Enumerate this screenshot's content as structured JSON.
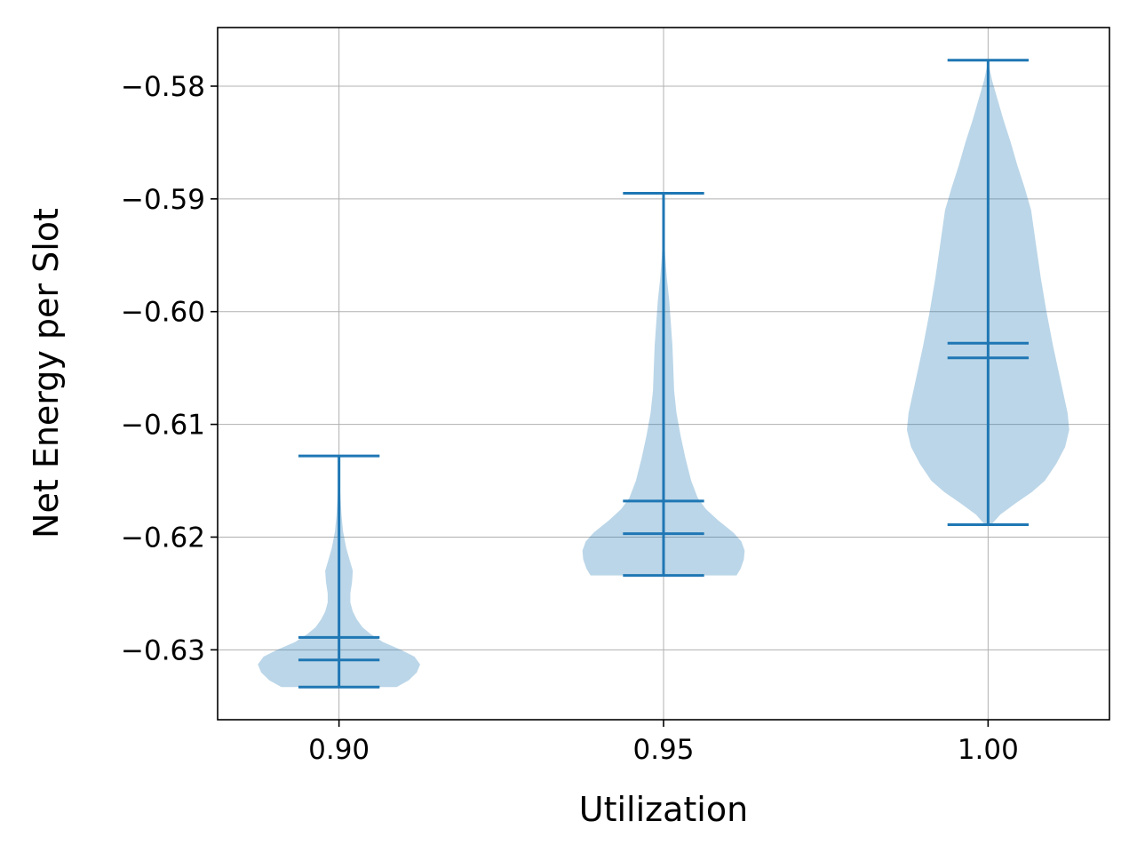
{
  "chart_data": {
    "type": "violin",
    "title": "",
    "xlabel": "Utilization",
    "ylabel": "Net Energy per Slot",
    "grid": true,
    "ylim": [
      -0.6362,
      -0.5748
    ],
    "xlim": [
      0.8813,
      1.0187
    ],
    "x_ticks": [
      {
        "value": 0.9,
        "label": "0.90"
      },
      {
        "value": 0.95,
        "label": "0.95"
      },
      {
        "value": 1.0,
        "label": "1.00"
      }
    ],
    "y_ticks": [
      {
        "value": -0.58,
        "label": "−0.58"
      },
      {
        "value": -0.59,
        "label": "−0.59"
      },
      {
        "value": -0.6,
        "label": "−0.60"
      },
      {
        "value": -0.61,
        "label": "−0.61"
      },
      {
        "value": -0.62,
        "label": "−0.62"
      },
      {
        "value": -0.63,
        "label": "−0.63"
      }
    ],
    "violin_half_width_max": 0.0125,
    "violins": [
      {
        "x": 0.9,
        "min": -0.6333,
        "max": -0.6128,
        "mean": -0.6289,
        "median": -0.6309,
        "density": [
          [
            -0.6333,
            0.71
          ],
          [
            -0.6327,
            0.86
          ],
          [
            -0.632,
            0.96
          ],
          [
            -0.6313,
            1.0
          ],
          [
            -0.6306,
            0.93
          ],
          [
            -0.63,
            0.76
          ],
          [
            -0.6293,
            0.54
          ],
          [
            -0.6286,
            0.39
          ],
          [
            -0.628,
            0.29
          ],
          [
            -0.6273,
            0.22
          ],
          [
            -0.6266,
            0.17
          ],
          [
            -0.6258,
            0.14
          ],
          [
            -0.625,
            0.14
          ],
          [
            -0.624,
            0.16
          ],
          [
            -0.623,
            0.17
          ],
          [
            -0.622,
            0.13
          ],
          [
            -0.621,
            0.09
          ],
          [
            -0.6195,
            0.05
          ],
          [
            -0.618,
            0.03
          ],
          [
            -0.616,
            0.015
          ],
          [
            -0.614,
            0.006
          ],
          [
            -0.6128,
            0.0
          ]
        ]
      },
      {
        "x": 0.95,
        "min": -0.6234,
        "max": -0.5895,
        "mean": -0.6168,
        "median": -0.6197,
        "density": [
          [
            -0.6234,
            0.9
          ],
          [
            -0.6228,
            0.95
          ],
          [
            -0.622,
            0.99
          ],
          [
            -0.6212,
            1.0
          ],
          [
            -0.6204,
            0.96
          ],
          [
            -0.6196,
            0.86
          ],
          [
            -0.6185,
            0.67
          ],
          [
            -0.6175,
            0.52
          ],
          [
            -0.6165,
            0.42
          ],
          [
            -0.615,
            0.34
          ],
          [
            -0.613,
            0.27
          ],
          [
            -0.611,
            0.21
          ],
          [
            -0.609,
            0.16
          ],
          [
            -0.607,
            0.13
          ],
          [
            -0.605,
            0.12
          ],
          [
            -0.603,
            0.11
          ],
          [
            -0.601,
            0.09
          ],
          [
            -0.599,
            0.07
          ],
          [
            -0.597,
            0.04
          ],
          [
            -0.595,
            0.02
          ],
          [
            -0.593,
            0.008
          ],
          [
            -0.591,
            0.002
          ],
          [
            -0.5895,
            0.0
          ]
        ]
      },
      {
        "x": 1.0,
        "min": -0.6189,
        "max": -0.5777,
        "mean": -0.6028,
        "median": -0.6041,
        "density": [
          [
            -0.6189,
            0.04
          ],
          [
            -0.618,
            0.15
          ],
          [
            -0.617,
            0.34
          ],
          [
            -0.616,
            0.54
          ],
          [
            -0.615,
            0.7
          ],
          [
            -0.6135,
            0.84
          ],
          [
            -0.612,
            0.95
          ],
          [
            -0.6105,
            1.0
          ],
          [
            -0.609,
            0.98
          ],
          [
            -0.607,
            0.92
          ],
          [
            -0.605,
            0.86
          ],
          [
            -0.603,
            0.8
          ],
          [
            -0.6,
            0.72
          ],
          [
            -0.597,
            0.65
          ],
          [
            -0.594,
            0.59
          ],
          [
            -0.591,
            0.53
          ],
          [
            -0.589,
            0.45
          ],
          [
            -0.587,
            0.36
          ],
          [
            -0.585,
            0.28
          ],
          [
            -0.583,
            0.19
          ],
          [
            -0.581,
            0.11
          ],
          [
            -0.5795,
            0.05
          ],
          [
            -0.5785,
            0.02
          ],
          [
            -0.5777,
            0.0
          ]
        ]
      }
    ],
    "colors": {
      "body_fill": "#1f77b4",
      "body_opacity": 0.3,
      "lines": "#1f77b4",
      "grid": "#b0b0b0"
    }
  }
}
